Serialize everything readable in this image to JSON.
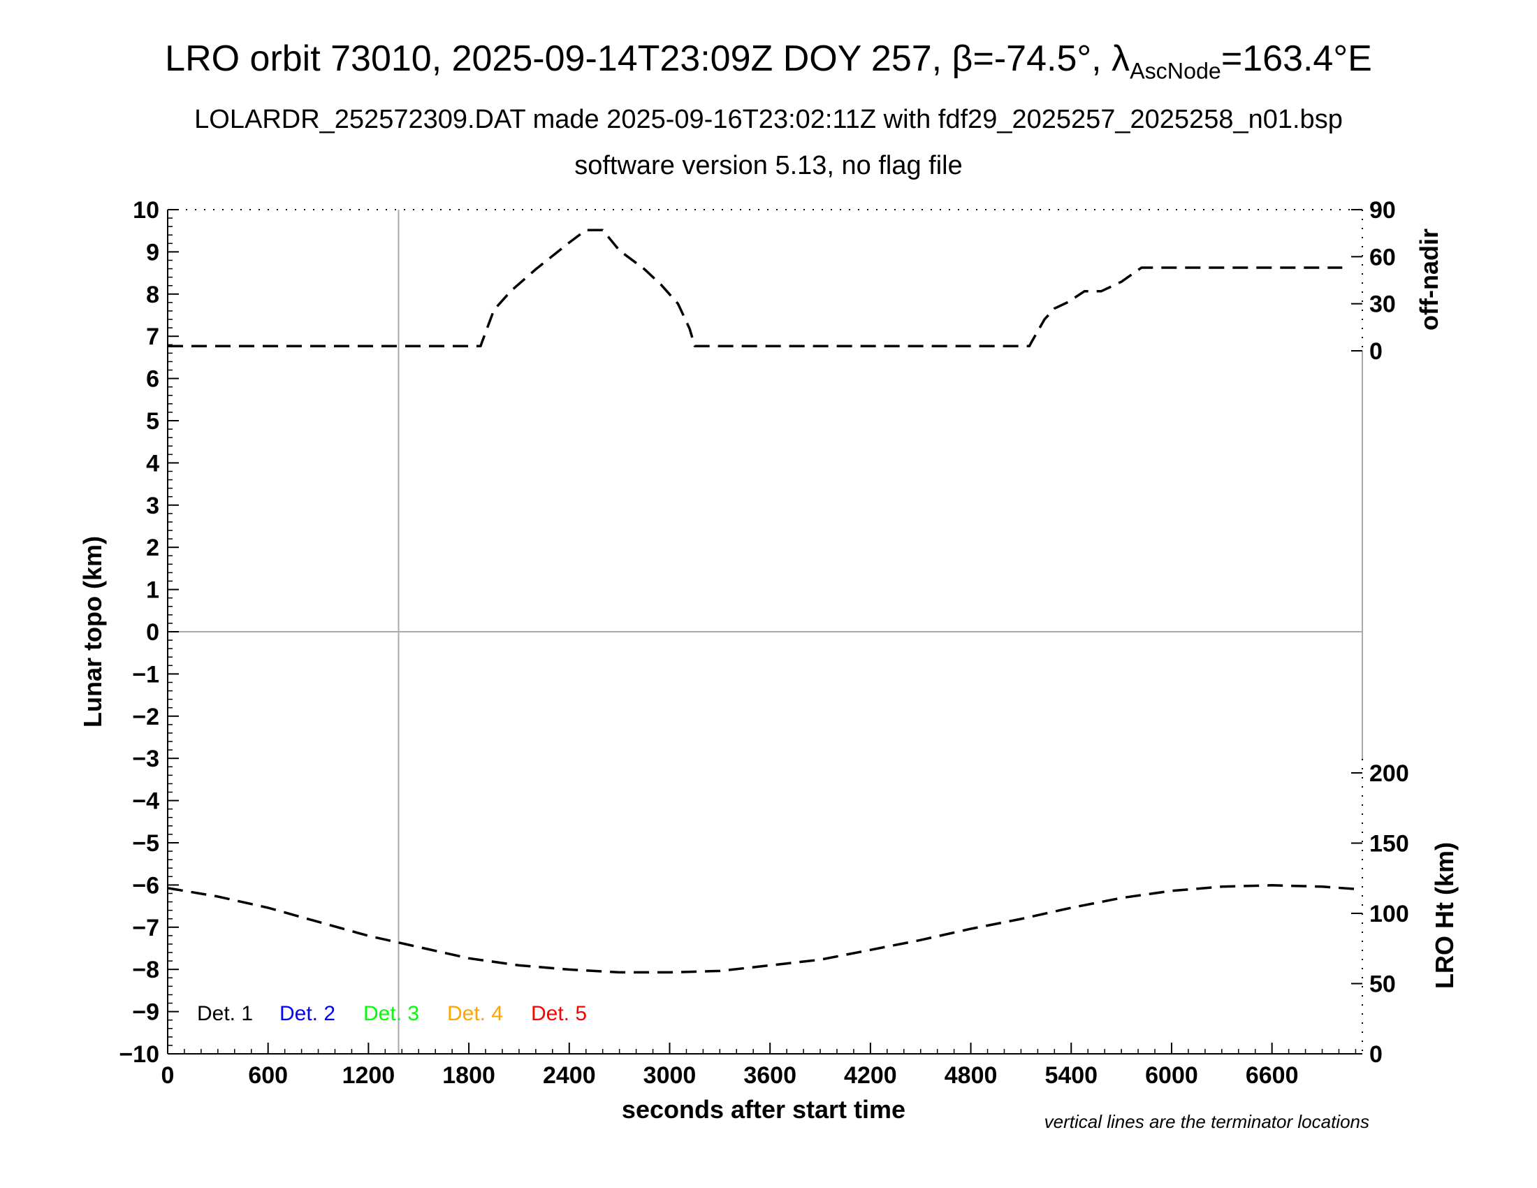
{
  "title": {
    "prefix": "LRO orbit 73010, 2025-09-14T23:09Z DOY 257, β=-74.5°, λ",
    "subscript": "AscNode",
    "suffix": "=163.4°E"
  },
  "subtitle_line1": "LOLARDR_252572309.DAT made 2025-09-16T23:02:11Z with fdf29_2025257_2025258_n01.bsp",
  "subtitle_line2": "software version 5.13, no flag file",
  "footnote": "vertical lines are the terminator locations",
  "chart_data": {
    "type": "line",
    "xlabel": "seconds after start time",
    "xlim": [
      0,
      7140
    ],
    "x_ticks": [
      0,
      600,
      1200,
      1800,
      2400,
      3000,
      3600,
      4200,
      4800,
      5400,
      6000,
      6600
    ],
    "grid": false,
    "y_left": {
      "label": "Lunar topo (km)",
      "lim": [
        -10,
        10
      ],
      "ticks": [
        10,
        9,
        8,
        7,
        6,
        5,
        4,
        3,
        2,
        1,
        0,
        -1,
        -2,
        -3,
        -4,
        -5,
        -6,
        -7,
        -8,
        -9,
        -10
      ],
      "tick_labels": [
        "10",
        "9",
        "8",
        "7",
        "6",
        "5",
        "4",
        "3",
        "2",
        "1",
        "0",
        "−1",
        "−2",
        "−3",
        "−4",
        "−5",
        "−6",
        "−7",
        "−8",
        "−9",
        "−10"
      ]
    },
    "y_right_top": {
      "label": "off-nadir",
      "ticks": [
        90,
        60,
        30,
        0
      ]
    },
    "y_right_bottom": {
      "label": "LRO Ht (km)",
      "lim": [
        0,
        200
      ],
      "ticks": [
        200,
        150,
        100,
        50,
        0
      ]
    },
    "terminator_lines_x": [
      1380
    ],
    "zero_line_y": 0,
    "legend": {
      "placement": "bottom-left",
      "entries": [
        {
          "name": "Det. 1",
          "color": "#000000"
        },
        {
          "name": "Det. 2",
          "color": "#0000ff"
        },
        {
          "name": "Det. 3",
          "color": "#00ff00"
        },
        {
          "name": "Det. 4",
          "color": "#ffa500"
        },
        {
          "name": "Det. 5",
          "color": "#ff0000"
        }
      ]
    },
    "series": [
      {
        "axis": "off-nadir",
        "style": "dashed",
        "x": [
          0,
          1870,
          1880,
          1950,
          2050,
          2200,
          2400,
          2500,
          2600,
          2700,
          2850,
          2950,
          3050,
          3120,
          3150,
          5150,
          5165,
          5240,
          5300,
          5380,
          5480,
          5580,
          5700,
          5820,
          6600,
          7020
        ],
        "y": [
          3,
          3,
          6,
          26,
          38,
          52,
          69,
          77,
          77,
          64,
          52,
          42,
          30,
          14,
          3,
          3,
          6,
          20,
          27,
          31,
          38,
          38,
          44,
          53,
          53,
          53
        ]
      },
      {
        "axis": "LRO Ht (km)",
        "style": "dashed",
        "x": [
          0,
          300,
          600,
          900,
          1200,
          1500,
          1800,
          2100,
          2400,
          2700,
          3000,
          3300,
          3600,
          3900,
          4200,
          4500,
          4800,
          5100,
          5400,
          5700,
          6000,
          6300,
          6600,
          6900,
          7140
        ],
        "y": [
          118,
          112,
          104,
          94,
          84,
          76,
          68,
          63,
          60,
          58,
          58,
          59,
          63,
          67,
          74,
          81,
          89,
          96,
          104,
          111,
          116,
          119,
          120,
          119,
          117
        ]
      }
    ]
  }
}
